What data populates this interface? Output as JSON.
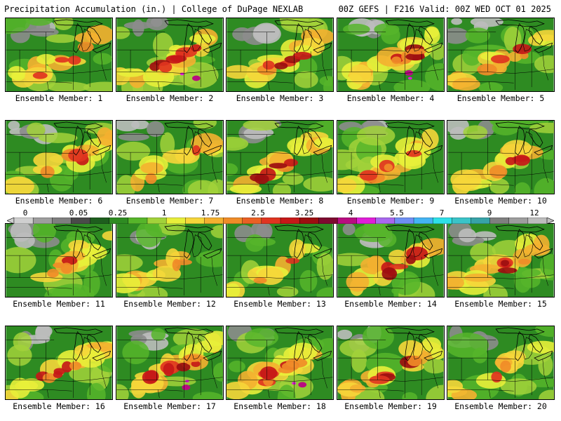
{
  "header": {
    "left_text": "Precipitation Accumulation (in.) | College of DuPage NEXLAB",
    "right_text": "00Z GEFS | F216 Valid: 00Z WED OCT 01 2025"
  },
  "colorbar": {
    "labels": [
      "0",
      "0.05",
      "0.25",
      "1",
      "1.75",
      "2.5",
      "3.25",
      "4",
      "5.5",
      "7",
      "9",
      "12"
    ],
    "colors": [
      "#cfcfcf",
      "#9e9e9e",
      "#7f7f7f",
      "#4a4a4a",
      "#1e5e1e",
      "#2e8b22",
      "#56b52a",
      "#a2d23a",
      "#e8ef3a",
      "#f6d63a",
      "#f4b030",
      "#f08c28",
      "#ea6024",
      "#e03420",
      "#c61818",
      "#9c0e10",
      "#7e0a30",
      "#b80c80",
      "#e01ed8",
      "#a868ee",
      "#6f8ff4",
      "#44b4f4",
      "#2ee0e8",
      "#3ac4c8",
      "#37a3a8",
      "#7f7f7f",
      "#9e9e9e",
      "#bdbdbd"
    ]
  },
  "members": [
    {
      "caption": "Ensemble Member: 1",
      "heavy": 2
    },
    {
      "caption": "Ensemble Member: 2",
      "heavy": 4
    },
    {
      "caption": "Ensemble Member: 3",
      "heavy": 3
    },
    {
      "caption": "Ensemble Member: 4",
      "heavy": 4
    },
    {
      "caption": "Ensemble Member: 5",
      "heavy": 2
    },
    {
      "caption": "Ensemble Member: 6",
      "heavy": 2
    },
    {
      "caption": "Ensemble Member: 7",
      "heavy": 1
    },
    {
      "caption": "Ensemble Member: 8",
      "heavy": 3
    },
    {
      "caption": "Ensemble Member: 9",
      "heavy": 3
    },
    {
      "caption": "Ensemble Member: 10",
      "heavy": 2
    },
    {
      "caption": "Ensemble Member: 11",
      "heavy": 2
    },
    {
      "caption": "Ensemble Member: 12",
      "heavy": 1
    },
    {
      "caption": "Ensemble Member: 13",
      "heavy": 1
    },
    {
      "caption": "Ensemble Member: 14",
      "heavy": 3
    },
    {
      "caption": "Ensemble Member: 15",
      "heavy": 3
    },
    {
      "caption": "Ensemble Member: 16",
      "heavy": 3
    },
    {
      "caption": "Ensemble Member: 17",
      "heavy": 4
    },
    {
      "caption": "Ensemble Member: 18",
      "heavy": 4
    },
    {
      "caption": "Ensemble Member: 19",
      "heavy": 3
    },
    {
      "caption": "Ensemble Member: 20",
      "heavy": 1
    }
  ]
}
